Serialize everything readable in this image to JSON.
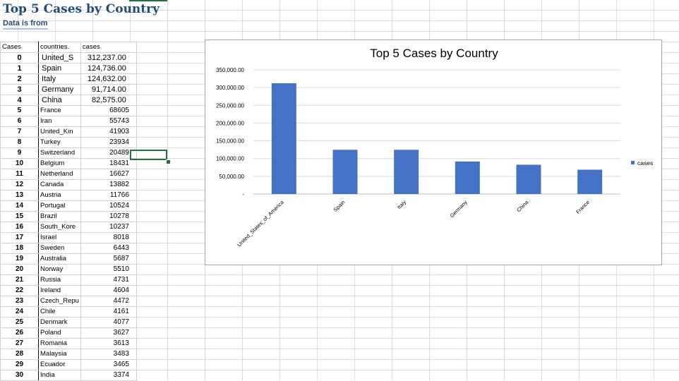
{
  "sheet": {
    "title": "Top 5 Cases by Country",
    "subtitle": "Data is from",
    "headers": {
      "index": "Cases",
      "country": "countries.",
      "cases": "cases"
    },
    "rows": [
      {
        "i": "0",
        "country": "United_S",
        "cases": "312,237.00"
      },
      {
        "i": "1",
        "country": "Spain",
        "cases": "124,736.00"
      },
      {
        "i": "2",
        "country": "Italy",
        "cases": "124,632.00"
      },
      {
        "i": "3",
        "country": "Germany",
        "cases": "91,714.00"
      },
      {
        "i": "4",
        "country": "China",
        "cases": "82,575.00"
      },
      {
        "i": "5",
        "country": "France",
        "cases": "68605"
      },
      {
        "i": "6",
        "country": "Iran",
        "cases": "55743"
      },
      {
        "i": "7",
        "country": "United_Kin",
        "cases": "41903"
      },
      {
        "i": "8",
        "country": "Turkey",
        "cases": "23934"
      },
      {
        "i": "9",
        "country": "Switzerland",
        "cases": "20489"
      },
      {
        "i": "10",
        "country": "Belgium",
        "cases": "18431"
      },
      {
        "i": "11",
        "country": "Netherland",
        "cases": "16627"
      },
      {
        "i": "12",
        "country": "Canada",
        "cases": "13882"
      },
      {
        "i": "13",
        "country": "Austria",
        "cases": "11766"
      },
      {
        "i": "14",
        "country": "Portugal",
        "cases": "10524"
      },
      {
        "i": "15",
        "country": "Brazil",
        "cases": "10278"
      },
      {
        "i": "16",
        "country": "South_Kore",
        "cases": "10237"
      },
      {
        "i": "17",
        "country": "Israel",
        "cases": "8018"
      },
      {
        "i": "18",
        "country": "Sweden",
        "cases": "6443"
      },
      {
        "i": "19",
        "country": "Australia",
        "cases": "5687"
      },
      {
        "i": "20",
        "country": "Norway",
        "cases": "5510"
      },
      {
        "i": "21",
        "country": "Russia",
        "cases": "4731"
      },
      {
        "i": "22",
        "country": "Ireland",
        "cases": "4604"
      },
      {
        "i": "23",
        "country": "Czech_Repu",
        "cases": "4472"
      },
      {
        "i": "24",
        "country": "Chile",
        "cases": "4161"
      },
      {
        "i": "25",
        "country": "Denmark",
        "cases": "4077"
      },
      {
        "i": "26",
        "country": "Poland",
        "cases": "3627"
      },
      {
        "i": "27",
        "country": "Romania",
        "cases": "3613"
      },
      {
        "i": "28",
        "country": "Malaysia",
        "cases": "3483"
      },
      {
        "i": "29",
        "country": "Ecuador",
        "cases": "3465"
      },
      {
        "i": "30",
        "country": "India",
        "cases": "3374"
      }
    ]
  },
  "chart_data": {
    "type": "bar",
    "title": "Top 5 Cases by Country",
    "xlabel": "",
    "ylabel": "",
    "categories": [
      "United_States_of_America",
      "Spain",
      "Italy",
      "Germany",
      "China",
      "France"
    ],
    "series": [
      {
        "name": "cases",
        "values": [
          312237,
          124736,
          124632,
          91714,
          82575,
          68605
        ]
      }
    ],
    "ylim": [
      0,
      350000
    ],
    "yticks": [
      0,
      50000,
      100000,
      150000,
      200000,
      250000,
      300000,
      350000
    ],
    "ytick_labels": [
      "-",
      "50,000.00",
      "100,000.00",
      "150,000.00",
      "200,000.00",
      "250,000.00",
      "300,000.00",
      "350,000.00"
    ],
    "grid": true,
    "legend": "right",
    "color": "#4472c4"
  }
}
